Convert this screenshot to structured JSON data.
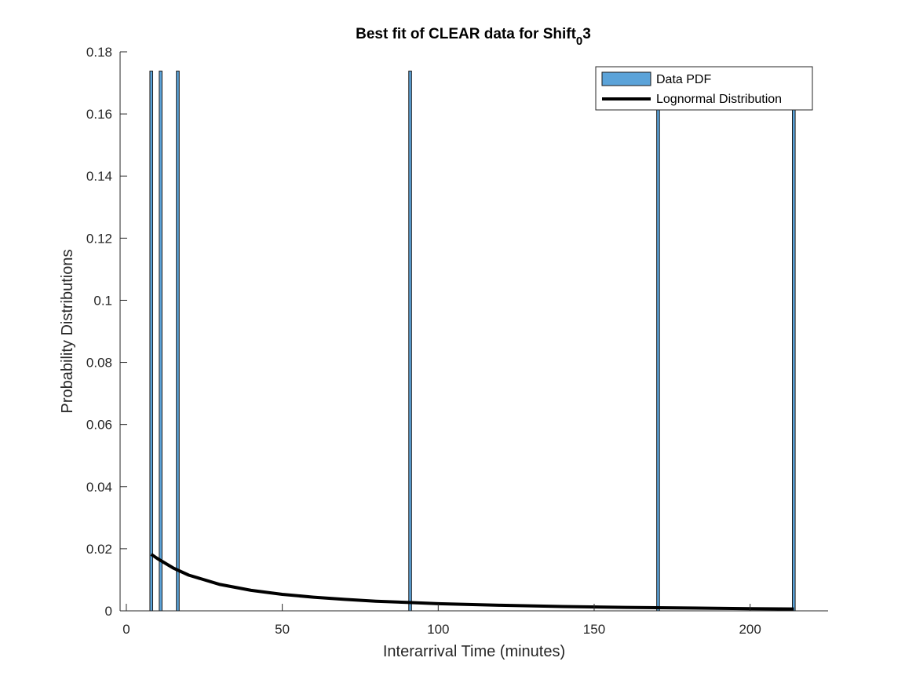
{
  "chart_data": {
    "type": "bar",
    "title": {
      "main": "Best fit of CLEAR data for Shift",
      "subscript": "0",
      "suffix": "3"
    },
    "xlabel": "Interarrival Time (minutes)",
    "ylabel": "Probability Distributions",
    "xlim": [
      -2,
      225
    ],
    "ylim": [
      0,
      0.18
    ],
    "xticks": [
      0,
      50,
      100,
      150,
      200
    ],
    "xtick_labels": [
      "0",
      "50",
      "100",
      "150",
      "200"
    ],
    "yticks": [
      0,
      0.02,
      0.04,
      0.06,
      0.08,
      0.1,
      0.12,
      0.14,
      0.16,
      0.18
    ],
    "ytick_labels": [
      "0",
      "0.02",
      "0.04",
      "0.06",
      "0.08",
      "0.1",
      "0.12",
      "0.14",
      "0.16",
      "0.18"
    ],
    "grid": false,
    "legend_position": "top-right",
    "series": [
      {
        "name": "Data PDF",
        "kind": "bar",
        "color": "#5ba3d9",
        "edge_color": "#1a1a1a",
        "bin_width": 0.9,
        "x": [
          8,
          11,
          16.5,
          91,
          170.5,
          214
        ],
        "values": [
          0.1738,
          0.1738,
          0.1738,
          0.1738,
          0.1738,
          0.1738
        ]
      },
      {
        "name": "Lognormal Distribution",
        "kind": "line",
        "color": "#000000",
        "x": [
          8,
          10,
          15,
          20,
          30,
          40,
          50,
          60,
          70,
          80,
          90,
          100,
          120,
          140,
          160,
          180,
          200,
          214
        ],
        "values": [
          0.0182,
          0.0168,
          0.0138,
          0.0115,
          0.0085,
          0.0066,
          0.0053,
          0.0044,
          0.0037,
          0.0031,
          0.0027,
          0.0023,
          0.0018,
          0.0014,
          0.0011,
          0.0009,
          0.0007,
          0.0006
        ]
      }
    ]
  }
}
